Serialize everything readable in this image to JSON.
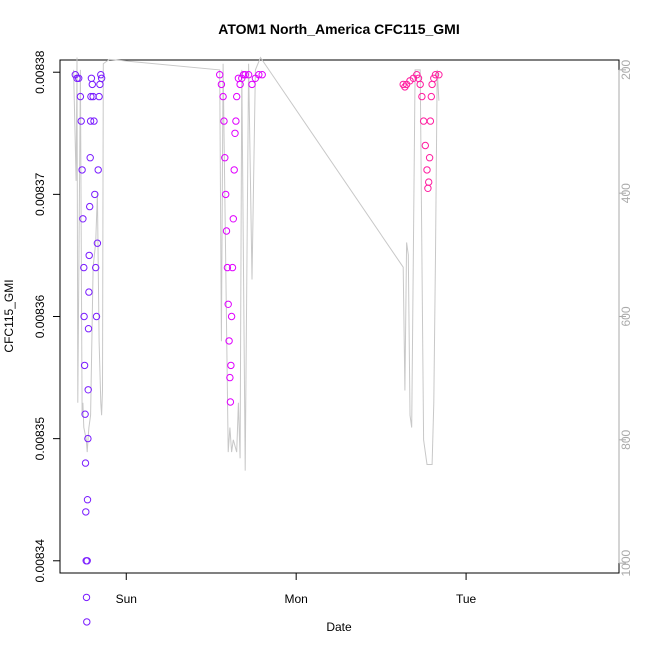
{
  "chart_data": {
    "type": "scatter",
    "title": "ATOM1 North_America CFC115_GMI",
    "xlabel": "Date",
    "ylabel": "CFC115_GMI",
    "x_ticks": [
      "Sun",
      "Mon",
      "Tue"
    ],
    "y_ticks": [
      "0.00834",
      "0.00835",
      "0.00836",
      "0.00837",
      "0.00838"
    ],
    "y_tick_values": [
      0.00834,
      0.00835,
      0.00836,
      0.00837,
      0.00838
    ],
    "y_right_ticks": [
      "200",
      "400",
      "600",
      "800",
      "1000"
    ],
    "y_right_tick_values": [
      200,
      400,
      600,
      800,
      1000
    ],
    "ylim": [
      0.008339,
      0.008381
    ],
    "y_right_lim": [
      1016,
      184
    ],
    "xlim_days": [
      -0.39,
      2.9
    ],
    "colors": {
      "flight1": "#7a1cff",
      "flight1_dark": "#5a10ff",
      "flight2": "#e000ff",
      "flight2_dark": "#c800f0",
      "flight3": "#ff1ea0",
      "altitude_line": "#c8c8c8",
      "axis": "#000000",
      "right_axis": "#aaaaaa"
    },
    "series": [
      {
        "color_key": "flight1",
        "points": [
          [
            -0.3,
            0.0083798
          ],
          [
            -0.29,
            0.0083795
          ],
          [
            -0.28,
            0.0083795
          ],
          [
            -0.27,
            0.008378
          ],
          [
            -0.265,
            0.008376
          ],
          [
            -0.26,
            0.008372
          ],
          [
            -0.255,
            0.008368
          ],
          [
            -0.25,
            0.008364
          ],
          [
            -0.248,
            0.00836
          ],
          [
            -0.245,
            0.008356
          ],
          [
            -0.242,
            0.008352
          ],
          [
            -0.24,
            0.008348
          ],
          [
            -0.238,
            0.008344
          ],
          [
            -0.236,
            0.00834
          ],
          [
            -0.234,
            0.008337
          ],
          [
            -0.232,
            0.008335
          ],
          [
            -0.23,
            0.00834
          ],
          [
            -0.228,
            0.008345
          ],
          [
            -0.226,
            0.00835
          ],
          [
            -0.224,
            0.008354
          ],
          [
            -0.222,
            0.008359
          ],
          [
            -0.22,
            0.008362
          ],
          [
            -0.218,
            0.008365
          ],
          [
            -0.215,
            0.008369
          ],
          [
            -0.212,
            0.008373
          ],
          [
            -0.21,
            0.008376
          ],
          [
            -0.208,
            0.008378
          ],
          [
            -0.205,
            0.0083795
          ],
          [
            -0.2,
            0.008379
          ],
          [
            -0.195,
            0.008378
          ],
          [
            -0.19,
            0.008376
          ],
          [
            -0.185,
            0.00837
          ],
          [
            -0.18,
            0.008364
          ],
          [
            -0.175,
            0.00836
          ],
          [
            -0.17,
            0.008366
          ],
          [
            -0.165,
            0.008372
          ],
          [
            -0.16,
            0.008378
          ],
          [
            -0.155,
            0.008379
          ],
          [
            -0.15,
            0.0083798
          ],
          [
            -0.145,
            0.0083795
          ]
        ]
      },
      {
        "color_key": "flight2",
        "points": [
          [
            0.55,
            0.0083798
          ],
          [
            0.56,
            0.008379
          ],
          [
            0.57,
            0.008378
          ],
          [
            0.575,
            0.008376
          ],
          [
            0.58,
            0.008373
          ],
          [
            0.585,
            0.00837
          ],
          [
            0.59,
            0.008367
          ],
          [
            0.595,
            0.008364
          ],
          [
            0.6,
            0.008361
          ],
          [
            0.605,
            0.008358
          ],
          [
            0.61,
            0.008355
          ],
          [
            0.613,
            0.008353
          ],
          [
            0.616,
            0.008356
          ],
          [
            0.62,
            0.00836
          ],
          [
            0.625,
            0.008364
          ],
          [
            0.63,
            0.008368
          ],
          [
            0.635,
            0.008372
          ],
          [
            0.64,
            0.008375
          ],
          [
            0.645,
            0.008376
          ],
          [
            0.65,
            0.008378
          ],
          [
            0.66,
            0.0083795
          ],
          [
            0.67,
            0.008379
          ],
          [
            0.68,
            0.0083795
          ],
          [
            0.69,
            0.0083798
          ],
          [
            0.7,
            0.0083798
          ],
          [
            0.72,
            0.0083798
          ],
          [
            0.74,
            0.008379
          ],
          [
            0.76,
            0.0083795
          ],
          [
            0.78,
            0.0083798
          ],
          [
            0.8,
            0.0083798
          ]
        ]
      },
      {
        "color_key": "flight3",
        "points": [
          [
            1.63,
            0.008379
          ],
          [
            1.64,
            0.0083788
          ],
          [
            1.65,
            0.008379
          ],
          [
            1.67,
            0.0083793
          ],
          [
            1.69,
            0.0083795
          ],
          [
            1.71,
            0.0083798
          ],
          [
            1.72,
            0.0083795
          ],
          [
            1.73,
            0.008379
          ],
          [
            1.74,
            0.008378
          ],
          [
            1.75,
            0.008376
          ],
          [
            1.76,
            0.008374
          ],
          [
            1.77,
            0.008372
          ],
          [
            1.775,
            0.0083705
          ],
          [
            1.78,
            0.008371
          ],
          [
            1.785,
            0.008373
          ],
          [
            1.79,
            0.008376
          ],
          [
            1.795,
            0.008378
          ],
          [
            1.8,
            0.008379
          ],
          [
            1.81,
            0.0083795
          ],
          [
            1.82,
            0.0083798
          ],
          [
            1.84,
            0.0083798
          ]
        ]
      }
    ],
    "altitude_line": [
      [
        -0.31,
        200
      ],
      [
        -0.295,
        380
      ],
      [
        -0.29,
        180
      ],
      [
        -0.285,
        740
      ],
      [
        -0.27,
        200
      ],
      [
        -0.26,
        760
      ],
      [
        -0.255,
        740
      ],
      [
        -0.25,
        780
      ],
      [
        -0.235,
        800
      ],
      [
        -0.23,
        820
      ],
      [
        -0.225,
        800
      ],
      [
        -0.22,
        780
      ],
      [
        -0.21,
        760
      ],
      [
        -0.195,
        520
      ],
      [
        -0.18,
        480
      ],
      [
        -0.17,
        400
      ],
      [
        -0.16,
        640
      ],
      [
        -0.15,
        740
      ],
      [
        -0.145,
        760
      ],
      [
        -0.14,
        720
      ],
      [
        -0.135,
        190
      ],
      [
        -0.1,
        183
      ],
      [
        0.55,
        200
      ],
      [
        0.56,
        640
      ],
      [
        0.57,
        190
      ],
      [
        0.6,
        820
      ],
      [
        0.61,
        780
      ],
      [
        0.62,
        820
      ],
      [
        0.63,
        800
      ],
      [
        0.65,
        820
      ],
      [
        0.66,
        740
      ],
      [
        0.67,
        830
      ],
      [
        0.68,
        200
      ],
      [
        0.7,
        850
      ],
      [
        0.72,
        190
      ],
      [
        0.74,
        540
      ],
      [
        0.76,
        200
      ],
      [
        0.79,
        180
      ],
      [
        1.63,
        520
      ],
      [
        1.64,
        720
      ],
      [
        1.65,
        480
      ],
      [
        1.66,
        500
      ],
      [
        1.67,
        760
      ],
      [
        1.68,
        780
      ],
      [
        1.7,
        200
      ],
      [
        1.73,
        200
      ],
      [
        1.75,
        800
      ],
      [
        1.77,
        840
      ],
      [
        1.8,
        840
      ],
      [
        1.81,
        740
      ],
      [
        1.82,
        500
      ],
      [
        1.83,
        200
      ],
      [
        1.84,
        250
      ]
    ]
  }
}
